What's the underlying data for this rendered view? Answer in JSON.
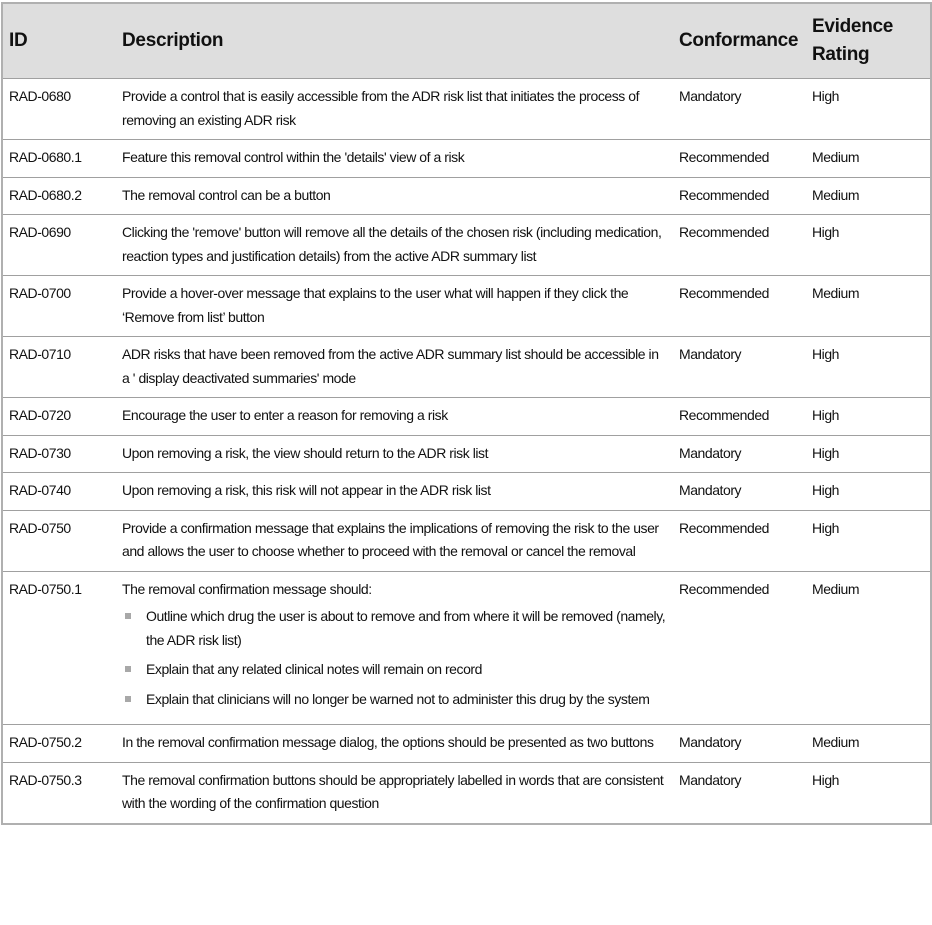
{
  "table": {
    "columns": [
      "ID",
      "Description",
      "Conformance",
      "Evidence Rating"
    ],
    "rows": [
      [
        "RAD-0680",
        "Provide a control that is easily accessible from the ADR risk list that initiates the process of removing an existing ADR risk",
        "Mandatory",
        "High"
      ],
      [
        "RAD-0680.1",
        "Feature this removal control within the 'details' view of a risk",
        "Recommended",
        "Medium"
      ],
      [
        "RAD-0680.2",
        "The removal control can be a button",
        "Recommended",
        "Medium"
      ],
      [
        "RAD-0690",
        "Clicking the 'remove' button will remove all the details of the chosen risk (including medication, reaction types and justification details) from the active ADR summary list",
        "Recommended",
        "High"
      ],
      [
        "RAD-0700",
        "Provide a hover-over message that explains to the user what will happen if they click the ‘Remove from list’ button",
        "Recommended",
        "Medium"
      ],
      [
        "RAD-0710",
        "ADR risks that have been removed from the active ADR summary list should be accessible in a ' display deactivated summaries' mode",
        "Mandatory",
        "High"
      ],
      [
        "RAD-0720",
        "Encourage the user to enter a reason for removing a risk",
        "Recommended",
        "High"
      ],
      [
        "RAD-0730",
        "Upon removing a risk, the view should return to the ADR risk list",
        "Mandatory",
        "High"
      ],
      [
        "RAD-0740",
        "Upon removing a risk, this risk will not appear in the ADR risk list",
        "Mandatory",
        "High"
      ],
      [
        "RAD-0750",
        "Provide a confirmation message that explains the implications of removing the risk to the user and allows the user to choose whether to proceed with the removal or cancel the removal",
        "Recommended",
        "High"
      ],
      [
        "RAD-0750.1",
        {
          "text": "The removal confirmation message should:",
          "bullets": [
            "Outline which drug the user is about to remove and from where it will be removed (namely, the ADR risk list)",
            "Explain that any related clinical notes will remain on record",
            "Explain that clinicians will no longer be warned not to administer this drug by the system"
          ]
        },
        "Recommended",
        "Medium"
      ],
      [
        "RAD-0750.2",
        "In the removal confirmation message dialog, the options should be presented as two buttons",
        "Mandatory",
        "Medium"
      ],
      [
        "RAD-0750.3",
        "The removal confirmation buttons should be appropriately labelled in words that are consistent with the wording of the confirmation question",
        "Mandatory",
        "High"
      ]
    ]
  }
}
